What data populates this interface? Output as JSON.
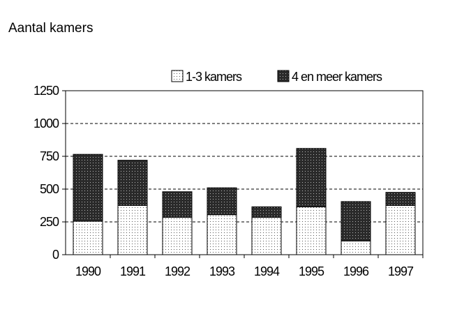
{
  "chart_data": {
    "type": "bar",
    "stacked": true,
    "title": "Aantal kamers",
    "xlabel": "",
    "ylabel": "",
    "categories": [
      "1990",
      "1991",
      "1992",
      "1993",
      "1994",
      "1995",
      "1996",
      "1997"
    ],
    "series": [
      {
        "name": "1-3 kamers",
        "values": [
          255,
          375,
          285,
          305,
          285,
          365,
          105,
          375
        ],
        "pattern": "light-dots"
      },
      {
        "name": "4 en meer kamers",
        "values": [
          510,
          345,
          195,
          205,
          80,
          445,
          300,
          100
        ],
        "pattern": "dark-dots"
      }
    ],
    "ylim": [
      0,
      1250
    ],
    "yticks": [
      0,
      250,
      500,
      750,
      1000,
      1250
    ],
    "grid": "horizontal-dashed",
    "legend_position": "top-right",
    "colors": {
      "light_fill": "#ffffff",
      "light_dot": "#555555",
      "dark_fill": "#2a2a2a",
      "dark_dot": "#bbbbbb",
      "axis": "#000000"
    }
  }
}
